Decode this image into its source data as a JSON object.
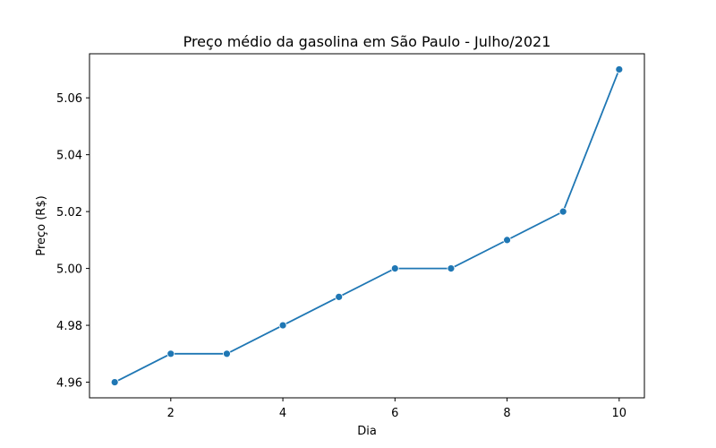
{
  "chart_data": {
    "type": "line",
    "title": "Preço médio da gasolina em São Paulo - Julho/2021",
    "xlabel": "Dia",
    "ylabel": "Preço (R$)",
    "x": [
      1,
      2,
      3,
      4,
      5,
      6,
      7,
      8,
      9,
      10
    ],
    "series": [
      {
        "values": [
          4.96,
          4.97,
          4.97,
          4.98,
          4.99,
          5.0,
          5.0,
          5.01,
          5.02,
          5.07
        ],
        "color": "#1f77b4",
        "marker": "circle"
      }
    ],
    "xlim": [
      0.55,
      10.45
    ],
    "ylim": [
      4.9545,
      5.0755
    ],
    "xticks": [
      2,
      4,
      6,
      8,
      10
    ],
    "xtick_labels": [
      "2",
      "4",
      "6",
      "8",
      "10"
    ],
    "yticks": [
      4.96,
      4.98,
      5.0,
      5.02,
      5.04,
      5.06
    ],
    "ytick_labels": [
      "4.96",
      "4.98",
      "5.00",
      "5.02",
      "5.04",
      "5.06"
    ],
    "grid": false,
    "legend": "none"
  }
}
